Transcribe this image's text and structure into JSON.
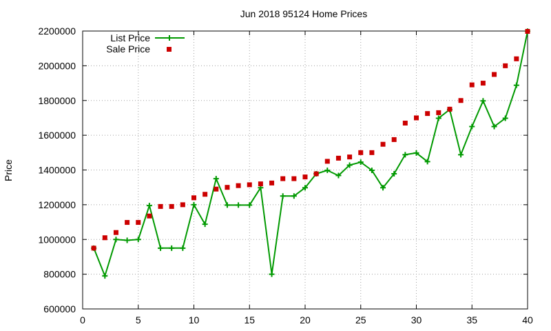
{
  "chart_data": {
    "type": "line",
    "title": "Jun 2018 95124 Home Prices",
    "xlabel": "",
    "ylabel": "Price",
    "xlim": [
      0,
      40
    ],
    "ylim": [
      600000,
      2200000
    ],
    "xticks": [
      0,
      5,
      10,
      15,
      20,
      25,
      30,
      35,
      40
    ],
    "yticks": [
      600000,
      800000,
      1000000,
      1200000,
      1400000,
      1600000,
      1800000,
      2000000,
      2200000
    ],
    "grid": true,
    "legend": "top-left",
    "series": [
      {
        "name": "List Price",
        "style": "line+cross",
        "color": "#009900",
        "x": [
          1,
          2,
          3,
          4,
          5,
          6,
          7,
          8,
          9,
          10,
          11,
          12,
          13,
          14,
          15,
          16,
          17,
          18,
          19,
          20,
          21,
          22,
          23,
          24,
          25,
          26,
          27,
          28,
          29,
          30,
          31,
          32,
          33,
          34,
          35,
          36,
          37,
          38,
          39,
          40
        ],
        "y": [
          950000,
          790000,
          1000000,
          995000,
          1000000,
          1195000,
          950000,
          950000,
          950000,
          1200000,
          1088000,
          1350000,
          1198000,
          1198000,
          1198000,
          1298000,
          800000,
          1250000,
          1250000,
          1298000,
          1378000,
          1398000,
          1368000,
          1428000,
          1445000,
          1398000,
          1298000,
          1378000,
          1488000,
          1498000,
          1448000,
          1698000,
          1748000,
          1488000,
          1650000,
          1798000,
          1650000,
          1698000,
          1888000,
          2199000
        ]
      },
      {
        "name": "Sale Price",
        "style": "square",
        "color": "#cc0000",
        "x": [
          1,
          2,
          3,
          4,
          5,
          6,
          7,
          8,
          9,
          10,
          11,
          12,
          13,
          14,
          15,
          16,
          17,
          18,
          19,
          20,
          21,
          22,
          23,
          24,
          25,
          26,
          27,
          28,
          29,
          30,
          31,
          32,
          33,
          34,
          35,
          36,
          37,
          38,
          39,
          40
        ],
        "y": [
          950000,
          1010000,
          1040000,
          1098000,
          1098000,
          1135000,
          1190000,
          1190000,
          1200000,
          1240000,
          1260000,
          1290000,
          1300000,
          1310000,
          1315000,
          1320000,
          1325000,
          1350000,
          1350000,
          1360000,
          1378000,
          1450000,
          1468000,
          1475000,
          1500000,
          1500000,
          1548000,
          1575000,
          1670000,
          1700000,
          1725000,
          1730000,
          1750000,
          1800000,
          1890000,
          1900000,
          1950000,
          2000000,
          2040000,
          2198000
        ]
      }
    ]
  }
}
